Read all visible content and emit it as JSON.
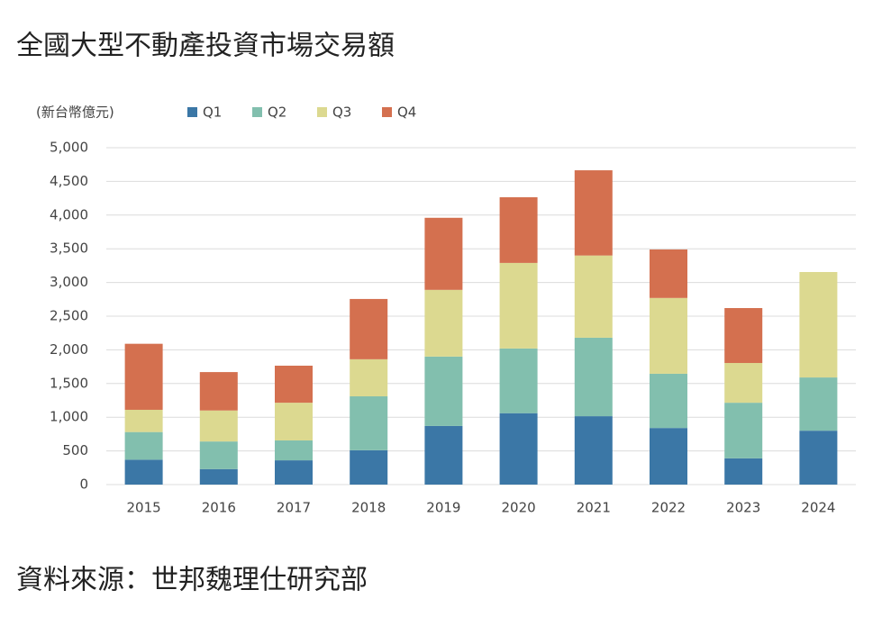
{
  "chart_data": {
    "type": "stacked_bar",
    "title": "全國大型不動產投資市場交易額",
    "y_label": "(新台幣億元)",
    "source": "資料來源：世邦魏理仕研究部",
    "categories": [
      "2015",
      "2016",
      "2017",
      "2018",
      "2019",
      "2020",
      "2021",
      "2022",
      "2023",
      "2024"
    ],
    "series": [
      {
        "name": "Q1",
        "color": "#3b77a6",
        "values": [
          370,
          230,
          360,
          510,
          870,
          1060,
          1015,
          840,
          390,
          800
        ]
      },
      {
        "name": "Q2",
        "color": "#82bfae",
        "values": [
          410,
          410,
          295,
          800,
          1030,
          960,
          1165,
          805,
          825,
          790
        ]
      },
      {
        "name": "Q3",
        "color": "#dcd990",
        "values": [
          330,
          460,
          560,
          550,
          990,
          1270,
          1220,
          1125,
          590,
          1565
        ]
      },
      {
        "name": "Q4",
        "color": "#d4704f",
        "values": [
          980,
          570,
          550,
          895,
          1070,
          975,
          1265,
          720,
          815,
          null
        ]
      }
    ],
    "ylim": [
      0,
      5000
    ],
    "yticks": [
      0,
      500,
      {
        "value": 1000,
        "label": "1,000"
      },
      {
        "value": 1500,
        "label": "1,500"
      },
      {
        "value": 2000,
        "label": "2,000"
      },
      {
        "value": 2500,
        "label": "2,500"
      },
      {
        "value": 3000,
        "label": "3,000"
      },
      {
        "value": 3500,
        "label": "3,500"
      },
      {
        "value": 4000,
        "label": "4,000"
      },
      {
        "value": 4500,
        "label": "4,500"
      },
      {
        "value": 5000,
        "label": "5,000"
      }
    ],
    "grid": true
  }
}
